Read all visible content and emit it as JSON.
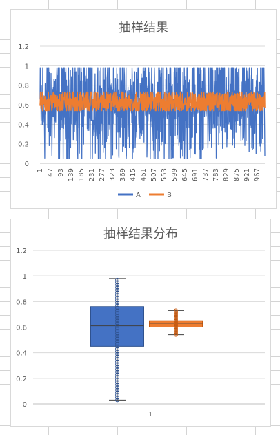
{
  "chart_data": [
    {
      "type": "line",
      "title": "抽样结果",
      "x": {
        "start": 1,
        "end": 1000,
        "tick_step": 46
      },
      "ylim": [
        0,
        1.2
      ],
      "yticks": [
        "0",
        "0.2",
        "0.4",
        "0.6",
        "0.8",
        "1",
        "1.2"
      ],
      "grid": true,
      "legend_position": "bottom",
      "series": [
        {
          "name": "A",
          "color": "#4472c4",
          "min": 0.05,
          "max": 0.98,
          "mean": 0.6
        },
        {
          "name": "B",
          "color": "#ed7d31",
          "min": 0.54,
          "max": 0.73,
          "mean": 0.63
        }
      ]
    },
    {
      "type": "box",
      "title": "抽样结果分布",
      "categories": [
        "1"
      ],
      "ylim": [
        0,
        1.2
      ],
      "yticks": [
        "0",
        "0.2",
        "0.4",
        "0.6",
        "0.8",
        "1",
        "1.2"
      ],
      "grid": true,
      "series": [
        {
          "name": "A",
          "color": "#4472c4",
          "min": 0.03,
          "q1": 0.45,
          "median": 0.61,
          "q3": 0.76,
          "max": 0.98
        },
        {
          "name": "B",
          "color": "#ed7d31",
          "min": 0.54,
          "q1": 0.6,
          "median": 0.63,
          "q3": 0.65,
          "max": 0.73
        }
      ]
    }
  ]
}
